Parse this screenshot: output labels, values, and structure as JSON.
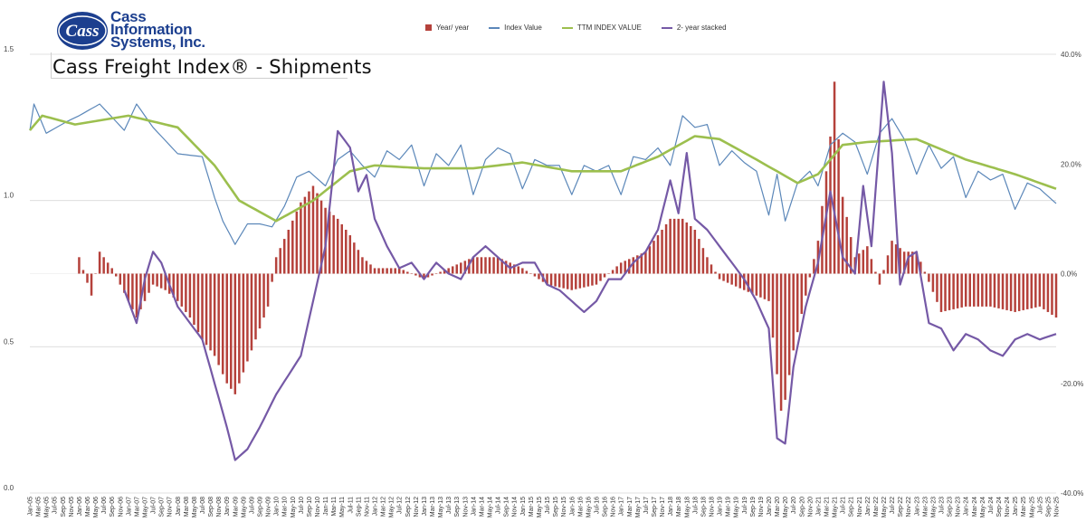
{
  "header": {
    "logo_text": [
      "Cass",
      "Information",
      "Systems, Inc."
    ],
    "logo_mark": "Cass",
    "title": "Cass Freight Index® - Shipments"
  },
  "legend": [
    {
      "label": "Year/ year",
      "color": "#b5413b",
      "kind": "bar"
    },
    {
      "label": "Index Value",
      "color": "#5b87b9",
      "kind": "line"
    },
    {
      "label": "TTM INDEX VALUE",
      "color": "#9cbf4e",
      "kind": "line"
    },
    {
      "label": "2- year stacked",
      "color": "#7559a6",
      "kind": "line"
    }
  ],
  "chart_data": {
    "type": "bar+line",
    "title": "Cass Freight Index® - Shipments",
    "x_start": "Jan-05",
    "x_end": "Nov-25",
    "x_tick_step_months": 2,
    "y_left": {
      "range": [
        0.0,
        1.5
      ],
      "ticks": [
        "0.0",
        "0.5",
        "1.0",
        "1.5"
      ]
    },
    "y_right": {
      "range": [
        -40,
        40
      ],
      "ticks": [
        "-40.0%",
        "-20.0%",
        "0.0%",
        "20.0%",
        "40.0%"
      ]
    },
    "grid": "horizontal",
    "legend_position": "top-center",
    "series": [
      {
        "name": "Year/ year",
        "axis": "right",
        "type": "bar",
        "color": "#b5413b",
        "points": [
          [
            "Jan-06",
            3
          ],
          [
            "Apr-06",
            -4
          ],
          [
            "Jun-06",
            4
          ],
          [
            "Sep-06",
            1
          ],
          [
            "Nov-06",
            -2
          ],
          [
            "Jan-07",
            -5
          ],
          [
            "Mar-07",
            -8
          ],
          [
            "Jul-07",
            -2
          ],
          [
            "Oct-07",
            -3
          ],
          [
            "Jan-08",
            -5
          ],
          [
            "Apr-08",
            -8
          ],
          [
            "Jul-08",
            -12
          ],
          [
            "Oct-08",
            -15
          ],
          [
            "Jan-09",
            -20
          ],
          [
            "Mar-09",
            -22
          ],
          [
            "May-09",
            -18
          ],
          [
            "Jul-09",
            -14
          ],
          [
            "Sep-09",
            -10
          ],
          [
            "Nov-09",
            -6
          ],
          [
            "Jan-10",
            3
          ],
          [
            "Apr-10",
            8
          ],
          [
            "Jul-10",
            13
          ],
          [
            "Oct-10",
            16
          ],
          [
            "Jan-11",
            12
          ],
          [
            "Apr-11",
            10
          ],
          [
            "Jul-11",
            7
          ],
          [
            "Oct-11",
            3
          ],
          [
            "Jan-12",
            1
          ],
          [
            "Jul-12",
            1
          ],
          [
            "Jan-13",
            -1
          ],
          [
            "Jul-13",
            1
          ],
          [
            "Jan-14",
            3
          ],
          [
            "Jul-14",
            3
          ],
          [
            "Jan-15",
            1
          ],
          [
            "Jul-15",
            -2
          ],
          [
            "Jan-16",
            -3
          ],
          [
            "Jul-16",
            -2
          ],
          [
            "Jan-17",
            2
          ],
          [
            "Jul-17",
            4
          ],
          [
            "Jan-18",
            10
          ],
          [
            "Apr-18",
            10
          ],
          [
            "Jul-18",
            8
          ],
          [
            "Oct-18",
            3
          ],
          [
            "Jan-19",
            -1
          ],
          [
            "Jul-19",
            -3
          ],
          [
            "Jan-20",
            -5
          ],
          [
            "Apr-20",
            -25
          ],
          [
            "May-20",
            -23
          ],
          [
            "Jul-20",
            -14
          ],
          [
            "Oct-20",
            -4
          ],
          [
            "Jan-21",
            6
          ],
          [
            "Apr-21",
            25
          ],
          [
            "May-21",
            35
          ],
          [
            "Jul-21",
            14
          ],
          [
            "Oct-21",
            3
          ],
          [
            "Jan-22",
            5
          ],
          [
            "Apr-22",
            -2
          ],
          [
            "Jul-22",
            6
          ],
          [
            "Oct-22",
            4
          ],
          [
            "Jan-23",
            4
          ],
          [
            "Jul-23",
            -7
          ],
          [
            "Jan-24",
            -6
          ],
          [
            "Jul-24",
            -6
          ],
          [
            "Jan-25",
            -7
          ],
          [
            "Jul-25",
            -6
          ],
          [
            "Nov-25",
            -8
          ]
        ]
      },
      {
        "name": "Index Value",
        "axis": "left",
        "type": "line",
        "color": "#5b87b9",
        "points": [
          [
            "Jan-05",
            1.24
          ],
          [
            "Feb-05",
            1.33
          ],
          [
            "May-05",
            1.23
          ],
          [
            "Oct-05",
            1.27
          ],
          [
            "Jan-06",
            1.29
          ],
          [
            "Jun-06",
            1.33
          ],
          [
            "Dec-06",
            1.24
          ],
          [
            "Mar-07",
            1.33
          ],
          [
            "Jul-07",
            1.25
          ],
          [
            "Jan-08",
            1.16
          ],
          [
            "Jul-08",
            1.15
          ],
          [
            "Oct-08",
            1.01
          ],
          [
            "Dec-08",
            0.93
          ],
          [
            "Mar-09",
            0.85
          ],
          [
            "Jun-09",
            0.92
          ],
          [
            "Sep-09",
            0.92
          ],
          [
            "Dec-09",
            0.91
          ],
          [
            "Mar-10",
            0.98
          ],
          [
            "Jun-10",
            1.08
          ],
          [
            "Sep-10",
            1.1
          ],
          [
            "Jan-11",
            1.05
          ],
          [
            "Apr-11",
            1.14
          ],
          [
            "Jul-11",
            1.17
          ],
          [
            "Oct-11",
            1.12
          ],
          [
            "Jan-12",
            1.08
          ],
          [
            "Apr-12",
            1.17
          ],
          [
            "Jul-12",
            1.14
          ],
          [
            "Oct-12",
            1.19
          ],
          [
            "Jan-13",
            1.05
          ],
          [
            "Apr-13",
            1.16
          ],
          [
            "Jul-13",
            1.12
          ],
          [
            "Oct-13",
            1.19
          ],
          [
            "Jan-14",
            1.02
          ],
          [
            "Apr-14",
            1.14
          ],
          [
            "Jul-14",
            1.18
          ],
          [
            "Oct-14",
            1.16
          ],
          [
            "Jan-15",
            1.04
          ],
          [
            "Apr-15",
            1.14
          ],
          [
            "Jul-15",
            1.12
          ],
          [
            "Oct-15",
            1.12
          ],
          [
            "Jan-16",
            1.02
          ],
          [
            "Apr-16",
            1.12
          ],
          [
            "Jul-16",
            1.1
          ],
          [
            "Oct-16",
            1.12
          ],
          [
            "Jan-17",
            1.02
          ],
          [
            "Apr-17",
            1.15
          ],
          [
            "Jul-17",
            1.14
          ],
          [
            "Oct-17",
            1.18
          ],
          [
            "Jan-18",
            1.12
          ],
          [
            "Apr-18",
            1.29
          ],
          [
            "Jul-18",
            1.25
          ],
          [
            "Oct-18",
            1.26
          ],
          [
            "Jan-19",
            1.12
          ],
          [
            "Apr-19",
            1.17
          ],
          [
            "Jul-19",
            1.13
          ],
          [
            "Oct-19",
            1.1
          ],
          [
            "Jan-20",
            0.95
          ],
          [
            "Mar-20",
            1.09
          ],
          [
            "May-20",
            0.93
          ],
          [
            "Aug-20",
            1.06
          ],
          [
            "Nov-20",
            1.1
          ],
          [
            "Jan-21",
            1.05
          ],
          [
            "Apr-21",
            1.19
          ],
          [
            "Jul-21",
            1.23
          ],
          [
            "Oct-21",
            1.2
          ],
          [
            "Jan-22",
            1.09
          ],
          [
            "Apr-22",
            1.23
          ],
          [
            "Jul-22",
            1.28
          ],
          [
            "Oct-22",
            1.21
          ],
          [
            "Jan-23",
            1.09
          ],
          [
            "Apr-23",
            1.19
          ],
          [
            "Jul-23",
            1.11
          ],
          [
            "Oct-23",
            1.15
          ],
          [
            "Jan-24",
            1.01
          ],
          [
            "Apr-24",
            1.1
          ],
          [
            "Jul-24",
            1.07
          ],
          [
            "Oct-24",
            1.09
          ],
          [
            "Jan-25",
            0.97
          ],
          [
            "Apr-25",
            1.06
          ],
          [
            "Jul-25",
            1.04
          ],
          [
            "Nov-25",
            0.99
          ]
        ]
      },
      {
        "name": "TTM INDEX VALUE",
        "axis": "left",
        "type": "line",
        "color": "#9cbf4e",
        "points": [
          [
            "Jan-05",
            1.24
          ],
          [
            "Apr-05",
            1.29
          ],
          [
            "Dec-05",
            1.26
          ],
          [
            "Jan-07",
            1.29
          ],
          [
            "Jan-08",
            1.25
          ],
          [
            "Oct-08",
            1.12
          ],
          [
            "Apr-09",
            1.0
          ],
          [
            "Jan-10",
            0.93
          ],
          [
            "Oct-10",
            1.0
          ],
          [
            "Jul-11",
            1.1
          ],
          [
            "Jan-12",
            1.12
          ],
          [
            "Jan-13",
            1.11
          ],
          [
            "Jan-14",
            1.11
          ],
          [
            "Jan-15",
            1.13
          ],
          [
            "Jan-16",
            1.1
          ],
          [
            "Jan-17",
            1.1
          ],
          [
            "Oct-17",
            1.15
          ],
          [
            "Jul-18",
            1.22
          ],
          [
            "Jan-19",
            1.21
          ],
          [
            "Oct-19",
            1.14
          ],
          [
            "Aug-20",
            1.06
          ],
          [
            "Jan-21",
            1.09
          ],
          [
            "Jul-21",
            1.19
          ],
          [
            "Jan-22",
            1.2
          ],
          [
            "Jan-23",
            1.21
          ],
          [
            "Jan-24",
            1.14
          ],
          [
            "Jan-25",
            1.09
          ],
          [
            "Nov-25",
            1.04
          ]
        ]
      },
      {
        "name": "2- year stacked",
        "axis": "right",
        "type": "line",
        "color": "#7559a6",
        "points": [
          [
            "Dec-06",
            -3
          ],
          [
            "Mar-07",
            -9
          ],
          [
            "May-07",
            -1
          ],
          [
            "Jul-07",
            4
          ],
          [
            "Sep-07",
            2
          ],
          [
            "Jan-08",
            -6
          ],
          [
            "Jul-08",
            -12
          ],
          [
            "Oct-08",
            -20
          ],
          [
            "Jan-09",
            -28
          ],
          [
            "Mar-09",
            -34
          ],
          [
            "Jun-09",
            -32
          ],
          [
            "Sep-09",
            -28
          ],
          [
            "Jan-10",
            -22
          ],
          [
            "Jul-10",
            -15
          ],
          [
            "Jan-11",
            5
          ],
          [
            "Apr-11",
            26
          ],
          [
            "Jul-11",
            23
          ],
          [
            "Sep-11",
            15
          ],
          [
            "Nov-11",
            18
          ],
          [
            "Jan-12",
            10
          ],
          [
            "Apr-12",
            5
          ],
          [
            "Jul-12",
            1
          ],
          [
            "Oct-12",
            2
          ],
          [
            "Jan-13",
            -1
          ],
          [
            "Apr-13",
            2
          ],
          [
            "Jul-13",
            0
          ],
          [
            "Oct-13",
            -1
          ],
          [
            "Jan-14",
            3
          ],
          [
            "Apr-14",
            5
          ],
          [
            "Jul-14",
            3
          ],
          [
            "Oct-14",
            1
          ],
          [
            "Jan-15",
            2
          ],
          [
            "Apr-15",
            2
          ],
          [
            "Jul-15",
            -2
          ],
          [
            "Oct-15",
            -3
          ],
          [
            "Jan-16",
            -5
          ],
          [
            "Apr-16",
            -7
          ],
          [
            "Jul-16",
            -5
          ],
          [
            "Oct-16",
            -1
          ],
          [
            "Jan-17",
            -1
          ],
          [
            "Apr-17",
            2
          ],
          [
            "Jul-17",
            4
          ],
          [
            "Oct-17",
            8
          ],
          [
            "Jan-18",
            17
          ],
          [
            "Mar-18",
            11
          ],
          [
            "May-18",
            22
          ],
          [
            "Jul-18",
            10
          ],
          [
            "Oct-18",
            8
          ],
          [
            "Jan-19",
            5
          ],
          [
            "Apr-19",
            2
          ],
          [
            "Jul-19",
            -1
          ],
          [
            "Oct-19",
            -5
          ],
          [
            "Jan-20",
            -10
          ],
          [
            "Mar-20",
            -30
          ],
          [
            "May-20",
            -31
          ],
          [
            "Jul-20",
            -17
          ],
          [
            "Oct-20",
            -6
          ],
          [
            "Jan-21",
            2
          ],
          [
            "Apr-21",
            15
          ],
          [
            "Jul-21",
            3
          ],
          [
            "Oct-21",
            0
          ],
          [
            "Dec-21",
            16
          ],
          [
            "Feb-22",
            5
          ],
          [
            "May-22",
            35
          ],
          [
            "Jul-22",
            22
          ],
          [
            "Sep-22",
            -2
          ],
          [
            "Nov-22",
            3
          ],
          [
            "Jan-23",
            4
          ],
          [
            "Apr-23",
            -9
          ],
          [
            "Jul-23",
            -10
          ],
          [
            "Oct-23",
            -14
          ],
          [
            "Jan-24",
            -11
          ],
          [
            "Apr-24",
            -12
          ],
          [
            "Jul-24",
            -14
          ],
          [
            "Oct-24",
            -15
          ],
          [
            "Jan-25",
            -12
          ],
          [
            "Apr-25",
            -11
          ],
          [
            "Jul-25",
            -12
          ],
          [
            "Nov-25",
            -11
          ]
        ]
      }
    ]
  }
}
